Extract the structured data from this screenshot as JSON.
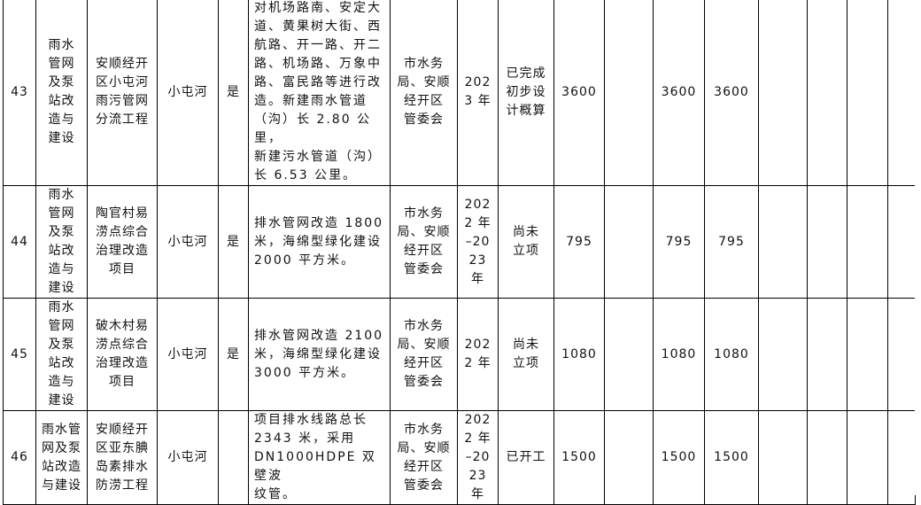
{
  "rows": [
    {
      "no": "43",
      "category": "雨水\n管网\n及泵\n站改\n造与\n建设",
      "name": "安顺经开\n区小屯河\n雨污管网\n分流工程",
      "river": "小屯河",
      "flag": "是",
      "content": "对机场路南、安定大\n道、黄果树大街、西\n航路、开一路、开二\n路、机场路、万象中\n路、富民路等进行改\n造。新建雨水管道\n（沟）长 2.80 公里，\n新建污水管道（沟）\n长 6.53 公里。",
      "unit": "市水务\n局、安顺\n经开区\n管委会",
      "year": "202\n3 年",
      "status": "已完成\n初步设\n计概算",
      "total": "3600",
      "c2": "",
      "c3": "3600",
      "c4": "3600",
      "c5": "",
      "c6": "",
      "c7": "",
      "c8": ""
    },
    {
      "no": "44",
      "category": "雨水\n管网\n及泵\n站改\n造与\n建设",
      "name": "陶官村易\n涝点综合\n治理改造\n项目",
      "river": "小屯河",
      "flag": "是",
      "content": "排水管网改造 1800\n米，海绵型绿化建设\n2000 平方米。",
      "unit": "市水务\n局、安顺\n经开区\n管委会",
      "year": "202\n2 年\n–20\n23\n年",
      "status": "尚未\n立项",
      "total": "795",
      "c2": "",
      "c3": "795",
      "c4": "795",
      "c5": "",
      "c6": "",
      "c7": "",
      "c8": ""
    },
    {
      "no": "45",
      "category": "雨水\n管网\n及泵\n站改\n造与\n建设",
      "name": "破木村易\n涝点综合\n治理改造\n项目",
      "river": "小屯河",
      "flag": "是",
      "content": "排水管网改造 2100\n米，海绵型绿化建设\n3000 平方米。",
      "unit": "市水务\n局、安顺\n经开区\n管委会",
      "year": "202\n2 年",
      "status": "尚未\n立项",
      "total": "1080",
      "c2": "",
      "c3": "1080",
      "c4": "1080",
      "c5": "",
      "c6": "",
      "c7": "",
      "c8": ""
    },
    {
      "no": "46",
      "category": "雨水管\n网及泵\n站改造\n与建设",
      "name": "安顺经开\n区亚东腆\n岛素排水\n防涝工程",
      "river": "小屯河",
      "flag": "",
      "content": "项目排水线路总长\n2343 米，采用\nDN1000HDPE 双壁波\n纹管。",
      "unit": "市水务\n局、安顺\n经开区\n管委会",
      "year": "202\n2 年\n–20\n23\n年",
      "status": "已开工",
      "total": "1500",
      "c2": "",
      "c3": "1500",
      "c4": "1500",
      "c5": "",
      "c6": "",
      "c7": "",
      "c8": ""
    }
  ]
}
